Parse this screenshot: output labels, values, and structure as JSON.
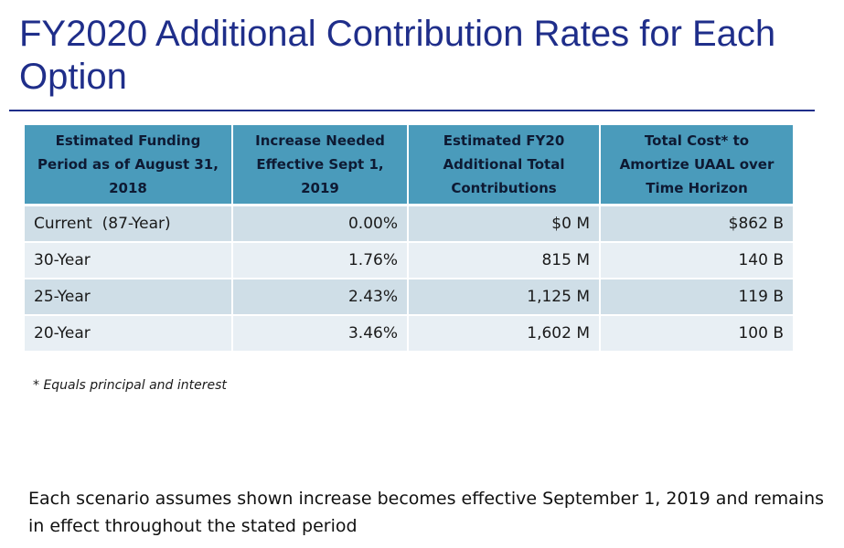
{
  "slide": {
    "title": "FY2020 Additional Contribution Rates for Each Option"
  },
  "table": {
    "headers": [
      "Estimated Funding Period as of August 31, 2018",
      "Increase Needed Effective Sept 1, 2019",
      "Estimated FY20 Additional Total Contributions",
      "Total Cost* to Amortize UAAL over Time Horizon"
    ],
    "rows": [
      [
        "Current  (87-Year)",
        "0.00%",
        "$0 M",
        "$862 B"
      ],
      [
        "30-Year",
        "1.76%",
        "815 M",
        "140 B"
      ],
      [
        "25-Year",
        "2.43%",
        "1,125 M",
        "119 B"
      ],
      [
        "20-Year",
        "3.46%",
        "1,602 M",
        "100 B"
      ]
    ],
    "colors": {
      "header_bg": "#4a9bbb",
      "row_odd": "#cfdee7",
      "row_even": "#e8eff4",
      "title": "#1f2e8a"
    }
  },
  "footnote": "* Equals principal and interest",
  "note": "Each scenario assumes shown increase becomes effective September 1, 2019 and remains in effect throughout the stated period"
}
